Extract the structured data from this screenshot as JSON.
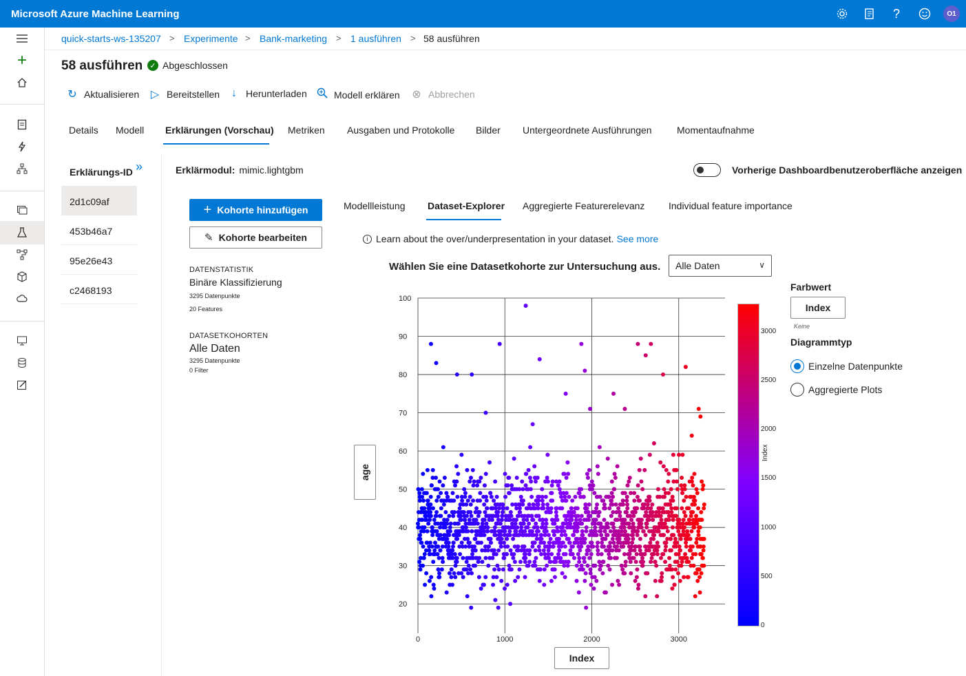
{
  "app": {
    "title": "Microsoft Azure Machine Learning",
    "user_initials": "O1"
  },
  "breadcrumb": {
    "items": [
      "quick-starts-ws-135207",
      "Experimente",
      "Bank-marketing",
      "1 ausführen",
      "58 ausführen"
    ],
    "separator": ">"
  },
  "run": {
    "title": "58 ausführen",
    "status": "Abgeschlossen"
  },
  "toolbar": {
    "refresh": "Aktualisieren",
    "deploy": "Bereitstellen",
    "download": "Herunterladen",
    "explain": "Modell erklären",
    "cancel": "Abbrechen"
  },
  "main_tabs": [
    "Details",
    "Modell",
    "Erklärungen (Vorschau)",
    "Metriken",
    "Ausgaben und Protokolle",
    "Bilder",
    "Untergeordnete Ausführungen",
    "Momentaufnahme"
  ],
  "main_tab_selected": "Erklärungen (Vorschau)",
  "explanations": {
    "header": "Erklärungs-ID",
    "ids": [
      "2d1c09af",
      "453b46a7",
      "95e26e43",
      "c2468193"
    ],
    "selected": "2d1c09af"
  },
  "explainer": {
    "label": "Erklärmodul:",
    "value": "mimic.lightgbm"
  },
  "toggle_label": "Vorherige Dashboardbenutzeroberfläche anzeigen",
  "cohort": {
    "add_button": "Kohorte hinzufügen",
    "edit_button": "Kohorte bearbeiten",
    "stats_header": "DATENSTATISTIK",
    "stats_type": "Binäre Klassifizierung",
    "stats_points": "3295 Datenpunkte",
    "stats_features": "20 Features",
    "cohorts_header": "DATASETKOHORTEN",
    "cohort_name": "Alle Daten",
    "cohort_points": "3295 Datenpunkte",
    "cohort_filters": "0 Filter"
  },
  "content_tabs": [
    "Modellleistung",
    "Dataset-Explorer",
    "Aggregierte Featurerelevanz",
    "Individual feature importance"
  ],
  "content_tab_selected": "Dataset-Explorer",
  "info": {
    "text": "Learn about the over/underpresentation in your dataset.",
    "link": "See more"
  },
  "explorer": {
    "prompt": "Wählen Sie eine Datasetkohorte zur Untersuchung aus.",
    "dropdown_value": "Alle Daten",
    "y_axis_button": "age",
    "x_axis_button": "Index",
    "color_header": "Farbwert",
    "color_button": "Index",
    "color_sub": "Keine",
    "chart_type_header": "Diagrammtyp",
    "chart_type_options": [
      "Einzelne Datenpunkte",
      "Aggregierte Plots"
    ],
    "chart_type_selected": "Einzelne Datenpunkte"
  },
  "colors": {
    "accent": "#0078d4",
    "success": "#107c10",
    "low": "#0000ff",
    "high": "#ff0000"
  },
  "chart_data": {
    "type": "scatter",
    "x_label": "Index",
    "y_label": "age",
    "x_range": [
      0,
      3295
    ],
    "y_range": [
      15,
      100
    ],
    "x_ticks": [
      0,
      1000,
      2000,
      3000
    ],
    "y_ticks": [
      20,
      30,
      40,
      50,
      60,
      70,
      80,
      90,
      100
    ],
    "colorbar": {
      "label": "Index",
      "ticks": [
        0,
        500,
        1000,
        1500,
        2000,
        2500,
        3000
      ],
      "range": [
        0,
        3294
      ],
      "colors": [
        "#0000ff",
        "#8000ff",
        "#ff0000"
      ]
    },
    "n_points": 3295,
    "points_sample": [
      [
        150,
        88
      ],
      [
        210,
        83
      ],
      [
        450,
        80
      ],
      [
        620,
        80
      ],
      [
        940,
        88
      ],
      [
        1240,
        98
      ],
      [
        1400,
        84
      ],
      [
        1880,
        88
      ],
      [
        1920,
        81
      ],
      [
        2530,
        88
      ],
      [
        2680,
        88
      ],
      [
        2620,
        85
      ],
      [
        2820,
        80
      ],
      [
        3080,
        82
      ],
      [
        3230,
        71
      ],
      [
        3250,
        69
      ],
      [
        1700,
        75
      ],
      [
        2250,
        75
      ],
      [
        1980,
        71
      ],
      [
        780,
        70
      ],
      [
        2380,
        71
      ],
      [
        1320,
        67
      ],
      [
        3150,
        64
      ]
    ],
    "grid": true
  }
}
